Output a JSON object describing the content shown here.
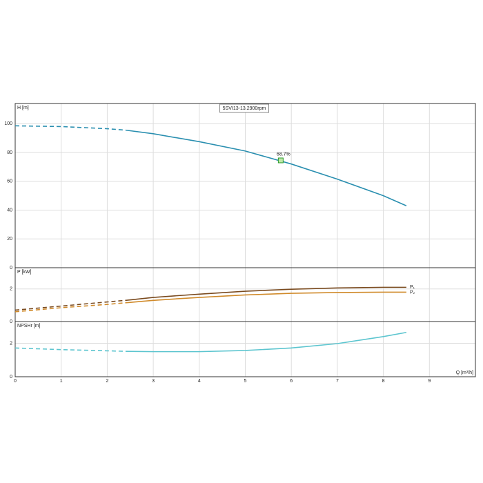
{
  "chart_data": [
    {
      "type": "line",
      "title": "5SVI13-13.2900rpm",
      "y_label": "H [m]",
      "xlim": [
        0,
        10
      ],
      "xticks": [
        0,
        1,
        2,
        3,
        4,
        5,
        6,
        7,
        8,
        9
      ],
      "ylim": [
        0,
        114
      ],
      "yticks": [
        0,
        20,
        40,
        60,
        80,
        100
      ],
      "grid": true,
      "series": [
        {
          "color": "#2a8fb0",
          "line_style": "dashed",
          "x": [
            0,
            1,
            2,
            2.4
          ],
          "values": [
            98.5,
            98,
            96.5,
            95.5
          ]
        },
        {
          "color": "#2a8fb0",
          "line_style": "solid",
          "x": [
            2.4,
            3,
            4,
            5,
            6,
            7,
            8,
            8.5
          ],
          "values": [
            95.5,
            93,
            87.5,
            81,
            72,
            61.5,
            50,
            43
          ]
        }
      ],
      "annotations": [
        {
          "text": "68.7%",
          "x": 5.77,
          "y": 74.5
        }
      ]
    },
    {
      "type": "line",
      "y_label": "P [kW]",
      "xlim": [
        0,
        10
      ],
      "xticks": [
        0,
        1,
        2,
        3,
        4,
        5,
        6,
        7,
        8,
        9
      ],
      "ylim": [
        0,
        3.3
      ],
      "yticks": [
        0,
        2
      ],
      "grid": true,
      "series": [
        {
          "color": "#7a4a1e",
          "line_style": "dashed",
          "x": [
            0,
            1,
            2,
            2.4
          ],
          "values": [
            0.7,
            0.95,
            1.2,
            1.3
          ]
        },
        {
          "name": "P₁",
          "color": "#7a4a1e",
          "line_style": "solid",
          "x": [
            2.4,
            3,
            4,
            5,
            6,
            7,
            8,
            8.5
          ],
          "values": [
            1.3,
            1.48,
            1.68,
            1.86,
            1.98,
            2.06,
            2.1,
            2.1
          ]
        },
        {
          "color": "#d08a2a",
          "line_style": "dashed",
          "x": [
            0,
            1,
            2,
            2.4
          ],
          "values": [
            0.6,
            0.85,
            1.05,
            1.15
          ]
        },
        {
          "name": "P₂",
          "color": "#d08a2a",
          "line_style": "solid",
          "x": [
            2.4,
            3,
            4,
            5,
            6,
            7,
            8,
            8.5
          ],
          "values": [
            1.15,
            1.3,
            1.48,
            1.63,
            1.73,
            1.78,
            1.8,
            1.8
          ]
        }
      ]
    },
    {
      "type": "line",
      "y_label": "NPSHr [m]",
      "x_label": "Q [m³/h]",
      "xlim": [
        0,
        10
      ],
      "xticks": [
        0,
        1,
        2,
        3,
        4,
        5,
        6,
        7,
        8,
        9
      ],
      "ylim": [
        0,
        3.3
      ],
      "yticks": [
        0,
        2
      ],
      "grid": true,
      "series": [
        {
          "color": "#5cc5cf",
          "line_style": "dashed",
          "x": [
            0,
            1,
            2,
            2.4
          ],
          "values": [
            1.72,
            1.62,
            1.55,
            1.52
          ]
        },
        {
          "color": "#5cc5cf",
          "line_style": "solid",
          "x": [
            2.4,
            3,
            4,
            5,
            6,
            7,
            8,
            8.5
          ],
          "values": [
            1.52,
            1.5,
            1.5,
            1.57,
            1.72,
            1.98,
            2.4,
            2.65
          ]
        }
      ]
    }
  ]
}
